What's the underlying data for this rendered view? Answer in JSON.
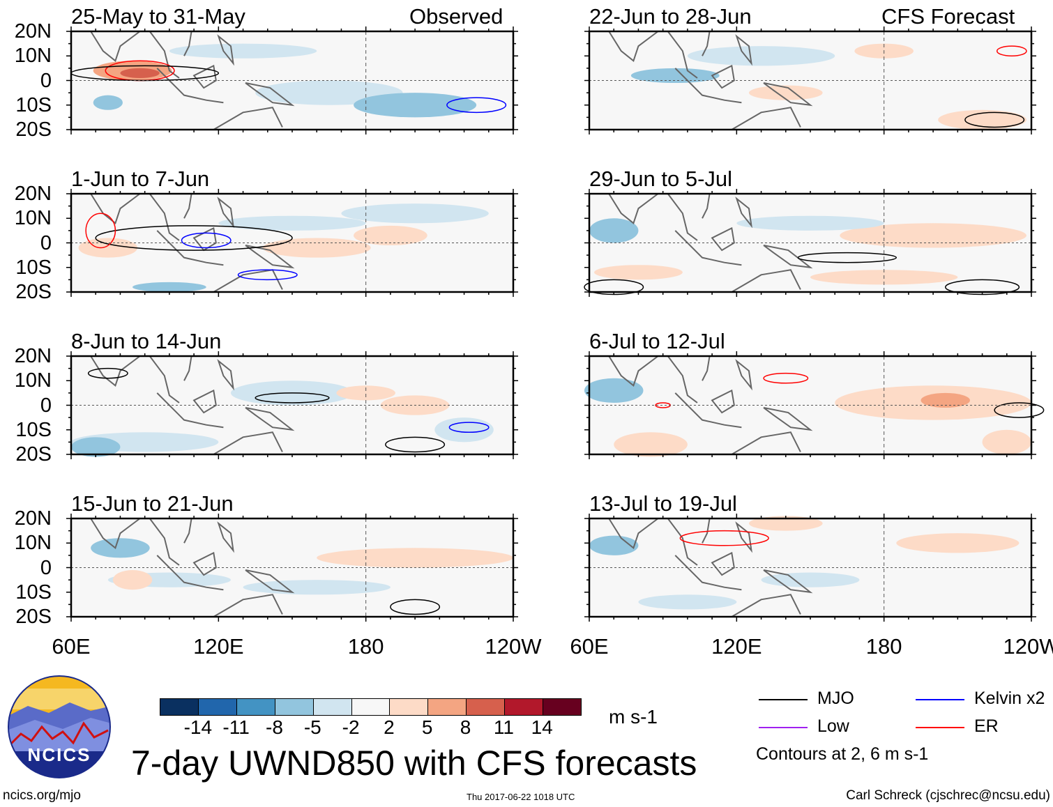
{
  "figure_title": "7-day UWND850 with CFS forecasts",
  "column_labels": {
    "observed": "Observed",
    "forecast": "CFS Forecast"
  },
  "panels": [
    {
      "title": "25-May to 31-May",
      "type": "observed"
    },
    {
      "title": "1-Jun to 7-Jun",
      "type": "observed"
    },
    {
      "title": "8-Jun to 14-Jun",
      "type": "observed"
    },
    {
      "title": "15-Jun to 21-Jun",
      "type": "observed"
    },
    {
      "title": "22-Jun to 28-Jun",
      "type": "forecast"
    },
    {
      "title": "29-Jun to 5-Jul",
      "type": "forecast"
    },
    {
      "title": "6-Jul to 12-Jul",
      "type": "forecast"
    },
    {
      "title": "13-Jul to 19-Jul",
      "type": "forecast"
    }
  ],
  "lat_labels": [
    "20N",
    "10N",
    "0",
    "10S",
    "20S"
  ],
  "lon_labels": [
    "60E",
    "120E",
    "180",
    "120W"
  ],
  "colorbar": {
    "ticks": [
      "-14",
      "-11",
      "-8",
      "-5",
      "-2",
      "2",
      "5",
      "8",
      "11",
      "14"
    ],
    "colors": [
      "#0a3060",
      "#2166ac",
      "#4393c3",
      "#92c5de",
      "#d1e5f0",
      "#f7f7f7",
      "#fddbc7",
      "#f4a582",
      "#d6604d",
      "#b2182b",
      "#67001f"
    ],
    "units": "m s-1"
  },
  "legend": {
    "items": [
      {
        "label": "MJO",
        "color": "#000000"
      },
      {
        "label": "Kelvin x2",
        "color": "#0000ff"
      },
      {
        "label": "Low",
        "color": "#a020f0"
      },
      {
        "label": "ER",
        "color": "#ff0000"
      }
    ],
    "note": "Contours at 2, 6 m s-1"
  },
  "logo": {
    "text": "NCICS"
  },
  "footer": {
    "left": "ncics.org/mjo",
    "center": "Thu 2017-06-22 1018 UTC",
    "right": "Carl Schreck (cjschrec@ncsu.edu)"
  }
}
